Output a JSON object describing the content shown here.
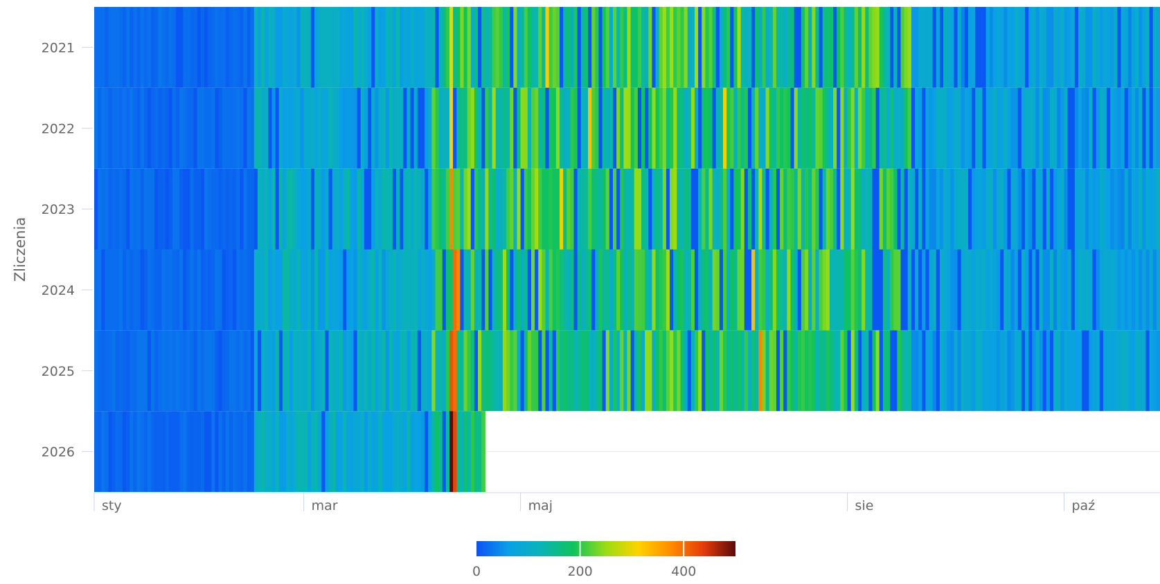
{
  "chart_data": {
    "type": "heatmap",
    "title": "",
    "ylabel": "Zliczenia",
    "xlabel": "",
    "years": [
      "2021",
      "2022",
      "2023",
      "2024",
      "2025",
      "2026"
    ],
    "month_ticks": [
      {
        "label": "sty",
        "day": 1
      },
      {
        "label": "mar",
        "day": 60
      },
      {
        "label": "maj",
        "day": 121
      },
      {
        "label": "sie",
        "day": 213
      },
      {
        "label": "paź",
        "day": 274
      }
    ],
    "x_domain_days": [
      1,
      300
    ],
    "partial_year": {
      "year": "2026",
      "last_day": 110
    },
    "color_scale": {
      "min": 0,
      "max": 500,
      "ticks": [
        0,
        200,
        400
      ],
      "colors": [
        "#0a52f2",
        "#0aa0e6",
        "#0ab4b4",
        "#10c35a",
        "#9bdc14",
        "#ffd200",
        "#ff8c00",
        "#e63c0a",
        "#5a0a0a"
      ]
    },
    "series_profile": {
      "note_free": true,
      "segments": [
        {
          "from_day": 1,
          "to_day": 45,
          "value": 20
        },
        {
          "from_day": 46,
          "to_day": 95,
          "value": 95
        },
        {
          "from_day": 96,
          "to_day": 105,
          "value": 170
        },
        {
          "from_day": 106,
          "to_day": 230,
          "value": 175
        },
        {
          "from_day": 231,
          "to_day": 300,
          "value": 75
        }
      ]
    },
    "peaks": [
      {
        "year": "2021",
        "day": 101,
        "value": 300
      },
      {
        "year": "2021",
        "day": 128,
        "value": 320
      },
      {
        "year": "2021",
        "day": 182,
        "value": 260
      },
      {
        "year": "2022",
        "day": 101,
        "value": 320
      },
      {
        "year": "2022",
        "day": 140,
        "value": 330
      },
      {
        "year": "2022",
        "day": 178,
        "value": 300
      },
      {
        "year": "2023",
        "day": 101,
        "value": 380
      },
      {
        "year": "2023",
        "day": 132,
        "value": 300
      },
      {
        "year": "2023",
        "day": 188,
        "value": 260
      },
      {
        "year": "2024",
        "day": 102,
        "value": 400
      },
      {
        "year": "2024",
        "day": 103,
        "value": 380
      },
      {
        "year": "2024",
        "day": 186,
        "value": 330
      },
      {
        "year": "2025",
        "day": 101,
        "value": 420
      },
      {
        "year": "2025",
        "day": 102,
        "value": 400
      },
      {
        "year": "2025",
        "day": 188,
        "value": 380
      },
      {
        "year": "2026",
        "day": 101,
        "value": 500
      },
      {
        "year": "2026",
        "day": 102,
        "value": 430
      }
    ]
  }
}
